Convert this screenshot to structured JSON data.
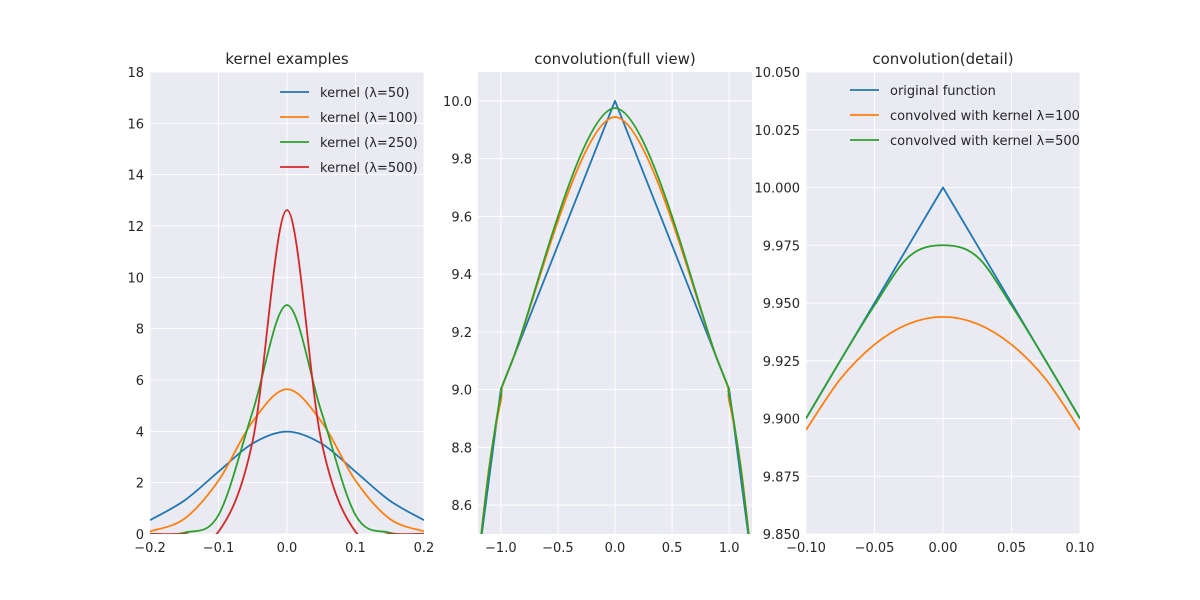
{
  "chart_data": [
    {
      "type": "line",
      "title": "kernel examples",
      "xlabel": "",
      "ylabel": "",
      "xlim": [
        -0.2,
        0.2
      ],
      "ylim": [
        0,
        18
      ],
      "xticks": [
        -0.2,
        -0.1,
        0.0,
        0.1,
        0.2
      ],
      "xtick_labels": [
        "−0.2",
        "−0.1",
        "0.0",
        "0.1",
        "0.2"
      ],
      "yticks": [
        0,
        2,
        4,
        6,
        8,
        10,
        12,
        14,
        16,
        18
      ],
      "ytick_labels": [
        "0",
        "2",
        "4",
        "6",
        "8",
        "10",
        "12",
        "14",
        "16",
        "18"
      ],
      "grid": true,
      "legend_position": "top-right",
      "series": [
        {
          "name": "kernel (λ=50)",
          "color": "#1f77b4",
          "x": [
            -0.2,
            -0.15,
            -0.1,
            -0.05,
            0.0,
            0.05,
            0.1,
            0.15,
            0.2
          ],
          "y": [
            0.54,
            1.3,
            2.43,
            3.53,
            3.99,
            3.53,
            2.43,
            1.3,
            0.54
          ]
        },
        {
          "name": "kernel (λ=100)",
          "color": "#ff7f0e",
          "x": [
            -0.2,
            -0.15,
            -0.1,
            -0.05,
            0.0,
            0.05,
            0.1,
            0.15,
            0.2
          ],
          "y": [
            0.1,
            0.59,
            2.08,
            4.39,
            5.64,
            4.39,
            2.08,
            0.59,
            0.1
          ]
        },
        {
          "name": "kernel (λ=250)",
          "color": "#2ca02c",
          "x": [
            -0.2,
            -0.15,
            -0.1,
            -0.05,
            0.0,
            0.05,
            0.1,
            0.15,
            0.2
          ],
          "y": [
            0.0,
            0.05,
            0.74,
            4.78,
            8.92,
            4.78,
            0.74,
            0.05,
            0.0
          ]
        },
        {
          "name": "kernel (λ=500)",
          "color": "#d62728",
          "x": [
            -0.2,
            -0.15,
            -0.1,
            -0.05,
            0.0,
            0.05,
            0.1,
            0.15,
            0.2
          ],
          "y": [
            0.0,
            0.0,
            0.09,
            3.64,
            12.62,
            3.64,
            0.09,
            0.0,
            0.0
          ]
        }
      ]
    },
    {
      "type": "line",
      "title": "convolution(full view)",
      "xlabel": "",
      "ylabel": "",
      "xlim": [
        -1.2,
        1.2
      ],
      "ylim": [
        8.5,
        10.1
      ],
      "xticks": [
        -1.0,
        -0.5,
        0.0,
        0.5,
        1.0
      ],
      "xtick_labels": [
        "−1.0",
        "−0.5",
        "0.0",
        "0.5",
        "1.0"
      ],
      "yticks": [
        8.6,
        8.8,
        9.0,
        9.2,
        9.4,
        9.6,
        9.8,
        10.0
      ],
      "ytick_labels": [
        "8.6",
        "8.8",
        "9.0",
        "9.2",
        "9.4",
        "9.6",
        "9.8",
        "10.0"
      ],
      "grid": true,
      "series": [
        {
          "name": "original function",
          "color": "#1f77b4",
          "x": [
            -1.2,
            -1.0,
            0.0,
            1.0,
            1.2
          ],
          "y": [
            8.4,
            9.0,
            10.0,
            9.0,
            8.4
          ]
        },
        {
          "name": "convolved with kernel λ=100",
          "color": "#ff7f0e",
          "x": [
            -1.2,
            -1.1,
            -1.0,
            -0.9,
            0.0,
            0.9,
            1.0,
            1.1,
            1.2
          ],
          "y": [
            8.4,
            8.74,
            8.96,
            9.1,
            9.944,
            9.1,
            8.96,
            8.74,
            8.4
          ]
        },
        {
          "name": "convolved with kernel λ=500",
          "color": "#2ca02c",
          "x": [
            -1.2,
            -1.1,
            -1.0,
            -0.9,
            0.0,
            0.9,
            1.0,
            1.1,
            1.2
          ],
          "y": [
            8.4,
            8.73,
            8.98,
            9.1,
            9.975,
            9.1,
            8.98,
            8.73,
            8.4
          ]
        }
      ]
    },
    {
      "type": "line",
      "title": "convolution(detail)",
      "xlabel": "",
      "ylabel": "",
      "xlim": [
        -0.1,
        0.1
      ],
      "ylim": [
        9.85,
        10.05
      ],
      "xticks": [
        -0.1,
        -0.05,
        0.0,
        0.05,
        0.1
      ],
      "xtick_labels": [
        "−0.10",
        "−0.05",
        "0.00",
        "0.05",
        "0.10"
      ],
      "yticks": [
        9.85,
        9.875,
        9.9,
        9.925,
        9.95,
        9.975,
        10.0,
        10.025,
        10.05
      ],
      "ytick_labels": [
        "9.850",
        "9.875",
        "9.900",
        "9.925",
        "9.950",
        "9.975",
        "10.000",
        "10.025",
        "10.050"
      ],
      "grid": true,
      "legend_position": "top-center",
      "series": [
        {
          "name": "original function",
          "color": "#1f77b4",
          "x": [
            -0.1,
            0.0,
            0.1
          ],
          "y": [
            9.9,
            10.0,
            9.9
          ]
        },
        {
          "name": "convolved with kernel λ=100",
          "color": "#ff7f0e",
          "x": [
            -0.1,
            -0.075,
            -0.05,
            -0.025,
            0.0,
            0.025,
            0.05,
            0.075,
            0.1
          ],
          "y": [
            9.895,
            9.917,
            9.932,
            9.941,
            9.944,
            9.941,
            9.932,
            9.917,
            9.895
          ]
        },
        {
          "name": "convolved with kernel λ=500",
          "color": "#2ca02c",
          "x": [
            -0.1,
            -0.075,
            -0.05,
            -0.025,
            0.0,
            0.025,
            0.05,
            0.075,
            0.1
          ],
          "y": [
            9.9,
            9.925,
            9.949,
            9.97,
            9.975,
            9.97,
            9.949,
            9.925,
            9.9
          ]
        }
      ]
    }
  ]
}
